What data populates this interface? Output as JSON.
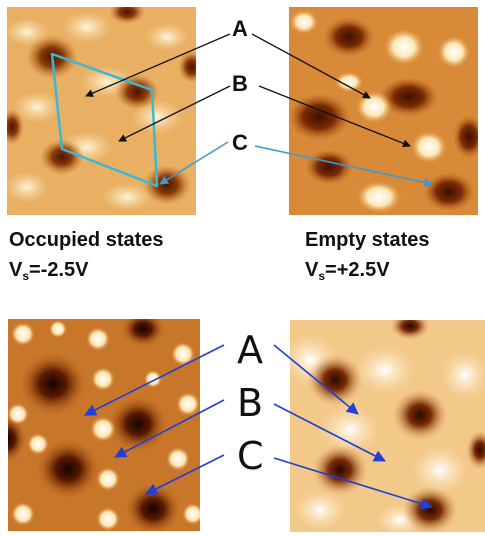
{
  "top": {
    "labels": [
      "A",
      "B",
      "C"
    ],
    "occupied": {
      "title": "Occupied states",
      "vs_prefix": "V",
      "vs_sub": "s",
      "vs_value": "=-2.5V"
    },
    "empty": {
      "title": "Empty states",
      "vs_prefix": "V",
      "vs_sub": "s",
      "vs_value": "=+2.5V"
    }
  },
  "bottom": {
    "labels": [
      "A",
      "B",
      "C"
    ]
  },
  "colors": {
    "stm_bright": "#fff3d6",
    "stm_mid": "#e6a64c",
    "stm_dark": "#5a1c00",
    "cell_outline": "#3cb7d8",
    "arrow_black": "#111111",
    "arrow_top_c": "#3a9ad6",
    "arrow_blue": "#1f3fd6"
  }
}
